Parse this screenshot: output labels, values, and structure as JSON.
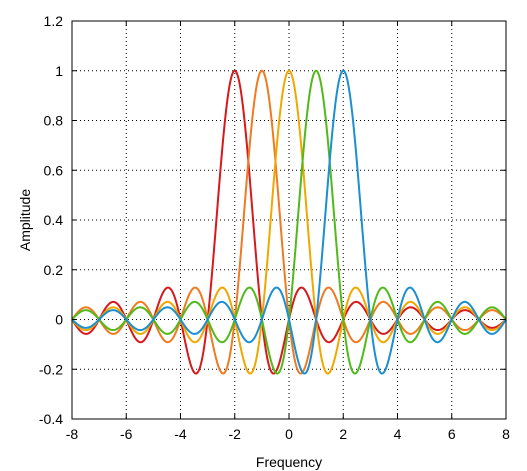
{
  "chart_data": {
    "type": "line",
    "xlabel": "Frequency",
    "ylabel": "Amplitude",
    "xlim": [
      -8,
      8
    ],
    "ylim": [
      -0.4,
      1.2
    ],
    "x_ticks": [
      -8,
      -6,
      -4,
      -2,
      0,
      2,
      4,
      6,
      8
    ],
    "y_ticks": [
      -0.4,
      -0.2,
      0,
      0.2,
      0.4,
      0.6,
      0.8,
      1,
      1.2
    ],
    "x_tick_labels": [
      "-8",
      "-6",
      "-4",
      "-2",
      "0",
      "2",
      "4",
      "6",
      "8"
    ],
    "y_tick_labels": [
      "-0.4",
      "-0.2",
      "0",
      "0.2",
      "0.4",
      "0.6",
      "0.8",
      "1",
      "1.2"
    ],
    "grid": true,
    "series": [
      {
        "center": -2,
        "color": "#d7191c",
        "function": "sinc"
      },
      {
        "center": -1,
        "color": "#ef7a22",
        "function": "sinc"
      },
      {
        "center": 0,
        "color": "#f0a800",
        "function": "sinc"
      },
      {
        "center": 1,
        "color": "#52b91b",
        "function": "sinc"
      },
      {
        "center": 2,
        "color": "#1b8fd1",
        "function": "sinc"
      }
    ],
    "x_sample_step": 0.05,
    "peak_value": 1,
    "min_value": -0.217
  },
  "colors": {
    "background": "#ffffff",
    "axes": "#000000"
  }
}
